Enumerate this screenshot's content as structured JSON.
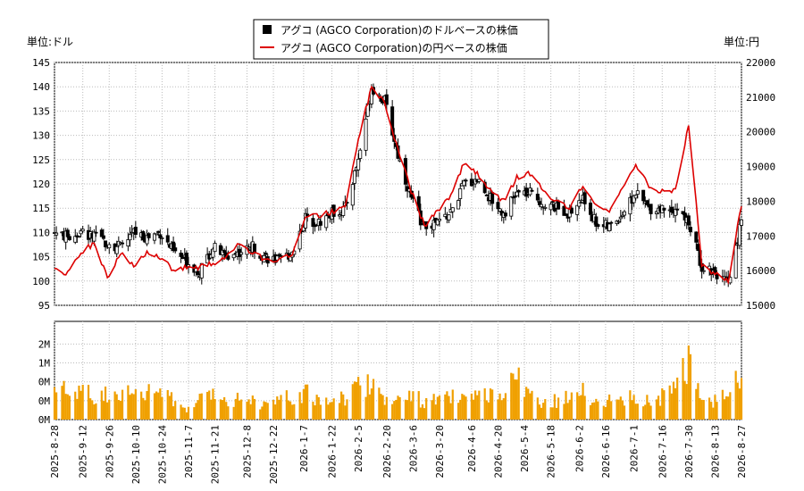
{
  "chart_data": [
    {
      "type": "candlestick-line",
      "legend": [
        {
          "label": "アグコ (AGCO Corporation)のドルベースの株価",
          "color": "#000000",
          "marker": "square"
        },
        {
          "label": "アグコ (AGCO Corporation)の円ベースの株価",
          "color": "#dd0000",
          "marker": "line"
        }
      ],
      "left_unit": "単位:ドル",
      "right_unit": "単位:円",
      "left_ylim": [
        95,
        145
      ],
      "left_ticks": [
        "95",
        "100",
        "105",
        "110",
        "115",
        "120",
        "125",
        "130",
        "135",
        "140",
        "145"
      ],
      "right_ylim": [
        15000,
        22000
      ],
      "right_ticks": [
        "15000",
        "16000",
        "17000",
        "18000",
        "19000",
        "20000",
        "21000",
        "22000"
      ],
      "grid": true,
      "dates": [
        "2025-8-28",
        "2025-9-4",
        "2025-9-11",
        "2025-9-18",
        "2025-9-25",
        "2025-10-2",
        "2025-10-9",
        "2025-10-16",
        "2025-10-23",
        "2025-10-30",
        "2025-11-6",
        "2025-11-13",
        "2025-11-20",
        "2025-11-27",
        "2025-12-4",
        "2025-12-11",
        "2025-12-18",
        "2025-12-25",
        "2026-1-1",
        "2026-1-8",
        "2026-1-15",
        "2026-1-22",
        "2026-1-29",
        "2026-2-5",
        "2026-2-12",
        "2026-2-19",
        "2026-2-26",
        "2026-3-5",
        "2026-3-12",
        "2026-3-19",
        "2026-3-26",
        "2026-4-2",
        "2026-4-9",
        "2026-4-16",
        "2026-4-23",
        "2026-4-30",
        "2026-5-7",
        "2026-5-14",
        "2026-5-21",
        "2026-5-28",
        "2026-6-4",
        "2026-6-11",
        "2026-6-18",
        "2026-6-25",
        "2026-7-2",
        "2026-7-9",
        "2026-7-16",
        "2026-7-23",
        "2026-7-30",
        "2026-8-6",
        "2026-8-13",
        "2026-8-20",
        "2026-8-27"
      ],
      "usd_close": [
        110,
        109,
        110,
        109,
        108,
        107,
        110,
        109,
        110,
        106,
        104,
        102,
        107,
        105,
        106,
        107,
        105,
        104,
        106,
        113,
        112,
        114,
        115,
        125,
        140,
        137,
        126,
        117,
        111,
        112,
        114,
        120,
        121,
        117,
        114,
        118,
        118,
        116,
        115,
        114,
        117,
        112,
        111,
        114,
        118,
        115,
        115,
        115,
        112,
        103,
        102,
        99,
        113
      ],
      "jpy_close": [
        16100,
        15900,
        16500,
        16800,
        15800,
        16500,
        16100,
        16500,
        16400,
        16000,
        16100,
        16100,
        16200,
        16400,
        16800,
        16500,
        16300,
        16300,
        16500,
        17500,
        17600,
        17700,
        17800,
        19800,
        21300,
        20800,
        19500,
        18300,
        17300,
        17700,
        18200,
        19100,
        18800,
        18300,
        18000,
        18700,
        18800,
        18300,
        18000,
        17800,
        18500,
        17900,
        17700,
        18400,
        19100,
        18400,
        18300,
        18300,
        20200,
        16200,
        15900,
        15700,
        17900
      ],
      "volume_axis_ticks": [
        "0M",
        "0M",
        "0M",
        "1M",
        "2M"
      ],
      "volume_ylim": [
        0,
        2.6
      ],
      "volume_weekly_avg_m": [
        0.9,
        0.7,
        0.8,
        0.6,
        0.7,
        0.8,
        0.6,
        0.7,
        0.8,
        0.5,
        0.3,
        0.5,
        0.8,
        0.5,
        0.6,
        0.5,
        0.4,
        0.5,
        0.6,
        0.7,
        0.5,
        0.6,
        0.6,
        0.9,
        1.0,
        0.6,
        0.5,
        0.6,
        0.5,
        0.5,
        0.6,
        0.5,
        0.6,
        0.6,
        0.5,
        1.2,
        0.6,
        0.5,
        0.5,
        0.6,
        0.7,
        0.5,
        0.5,
        0.5,
        0.6,
        0.5,
        0.6,
        0.8,
        1.6,
        0.6,
        0.5,
        0.9,
        1.0
      ],
      "x_tick_labels": [
        "2025-8-28",
        "2025-9-12",
        "2025-9-26",
        "2025-10-10",
        "2025-10-24",
        "2025-11-7",
        "2025-11-21",
        "2025-12-8",
        "2025-12-22",
        "2026-1-7",
        "2026-1-22",
        "2026-2-5",
        "2026-2-20",
        "2026-3-6",
        "2026-3-20",
        "2026-4-6",
        "2026-4-20",
        "2026-5-4",
        "2026-5-18",
        "2026-6-2",
        "2026-6-16",
        "2026-7-1",
        "2026-7-16",
        "2026-7-30",
        "2026-8-13",
        "2026-8-27"
      ]
    }
  ]
}
